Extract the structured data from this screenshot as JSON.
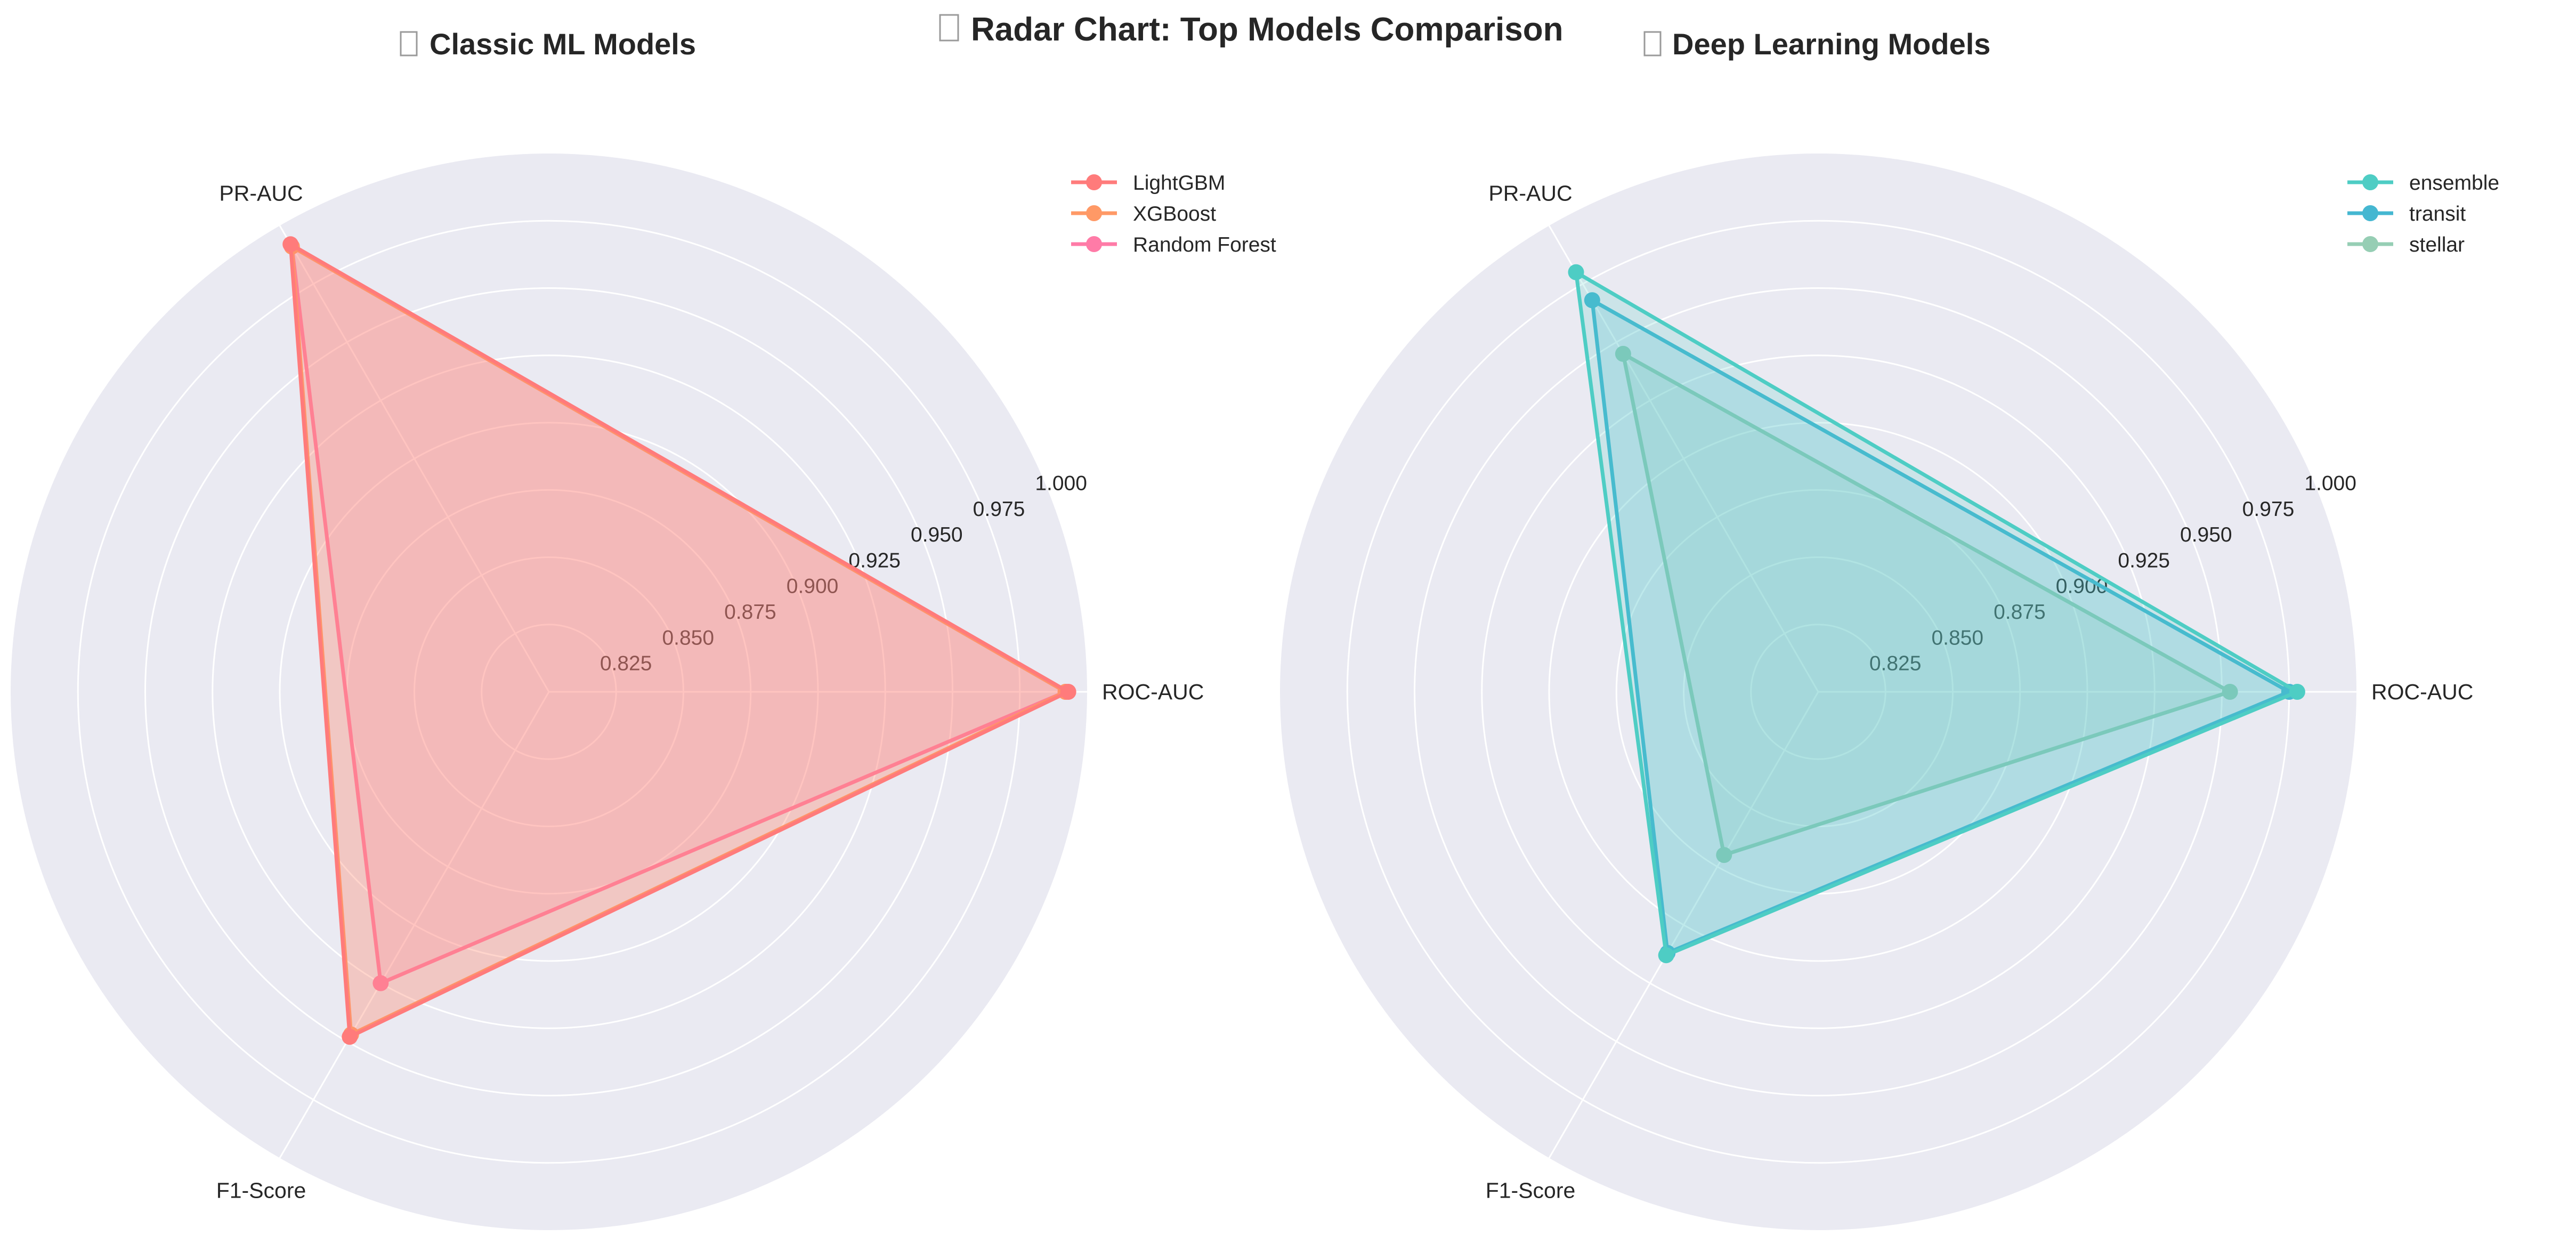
{
  "figure_title": "Radar Chart: Top Models Comparison",
  "chart_data": [
    {
      "type": "radar",
      "title": "Classic ML Models",
      "axes": [
        "ROC-AUC",
        "PR-AUC",
        "F1-Score"
      ],
      "rlim": [
        0.8,
        1.0
      ],
      "rticks": [
        "0.825",
        "0.850",
        "0.875",
        "0.900",
        "0.925",
        "0.950",
        "0.975",
        "1.000"
      ],
      "grid": true,
      "legend_position": "top-right",
      "series": [
        {
          "name": "LightGBM",
          "values": [
            0.993,
            0.992,
            0.948
          ],
          "color": "#ff7b7b"
        },
        {
          "name": "XGBoost",
          "values": [
            0.992,
            0.991,
            0.947
          ],
          "color": "#ff9966"
        },
        {
          "name": "Random Forest",
          "values": [
            0.992,
            0.991,
            0.925
          ],
          "color": "#ff7ba7"
        }
      ]
    },
    {
      "type": "radar",
      "title": "Deep Learning Models",
      "axes": [
        "ROC-AUC",
        "PR-AUC",
        "F1-Score"
      ],
      "rlim": [
        0.8,
        1.0
      ],
      "rticks": [
        "0.825",
        "0.850",
        "0.875",
        "0.900",
        "0.925",
        "0.950",
        "0.975",
        "1.000"
      ],
      "grid": true,
      "legend_position": "top-right",
      "series": [
        {
          "name": "ensemble",
          "values": [
            0.978,
            0.98,
            0.913
          ],
          "color": "#4ecdc4"
        },
        {
          "name": "transit",
          "values": [
            0.975,
            0.968,
            0.912
          ],
          "color": "#45b7d1"
        },
        {
          "name": "stellar",
          "values": [
            0.953,
            0.945,
            0.87
          ],
          "color": "#96ceb4"
        }
      ]
    }
  ]
}
